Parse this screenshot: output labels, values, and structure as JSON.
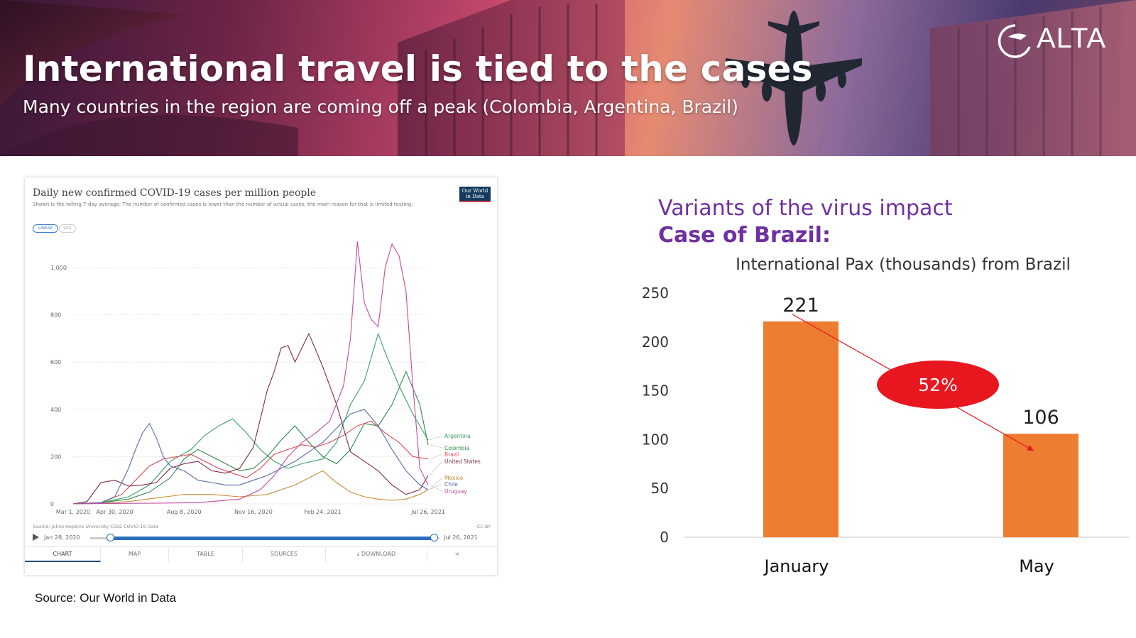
{
  "header": {
    "title": "International travel is tied to the cases",
    "subtitle": "Many countries in the region are coming off a peak (Colombia, Argentina, Brazil)",
    "brand": "ALTA"
  },
  "owid": {
    "title": "Daily new confirmed COVID-19 cases per million people",
    "note": "Shown is the rolling 7-day average. The number of confirmed cases is lower than the number of actual cases; the main reason for that is limited testing.",
    "logo_line1": "Our World",
    "logo_line2": "in Data",
    "scale_linear": "LINEAR",
    "scale_log": "LOG",
    "source": "Source: Johns Hopkins University CSSE COVID-19 Data",
    "license": "CC BY",
    "timeline_start": "Jan 28, 2020",
    "timeline_end": "Jul 26, 2021",
    "tabs": [
      "CHART",
      "MAP",
      "TABLE",
      "SOURCES",
      "DOWNLOAD",
      ""
    ]
  },
  "source_note": "Source: Our World in Data",
  "right_titles": {
    "line1": "Variants of the virus impact",
    "line2": "Case of Brazil:"
  },
  "chart_data": [
    {
      "type": "line",
      "title": "Daily new confirmed COVID-19 cases per million people",
      "x_tick_labels": [
        "Mar 1, 2020",
        "Apr 30, 2020",
        "Aug 8, 2020",
        "Nov 16, 2020",
        "Feb 24, 2021",
        "Jul 26, 2021"
      ],
      "x_tick_days": [
        0,
        60,
        160,
        260,
        360,
        512
      ],
      "x_range_days": [
        0,
        512
      ],
      "y_ticks": [
        0,
        200,
        400,
        600,
        800,
        1000
      ],
      "ylim": [
        0,
        1120
      ],
      "grid": true,
      "legend": "right-end labels",
      "series": [
        {
          "name": "Argentina",
          "color": "#3a9f6e",
          "x": [
            0,
            40,
            80,
            110,
            140,
            170,
            190,
            210,
            230,
            250,
            270,
            290,
            310,
            330,
            360,
            380,
            400,
            420,
            440,
            450,
            470,
            490,
            512
          ],
          "y": [
            0,
            5,
            30,
            80,
            180,
            230,
            290,
            330,
            360,
            300,
            230,
            180,
            150,
            170,
            190,
            260,
            420,
            520,
            720,
            640,
            500,
            380,
            270
          ]
        },
        {
          "name": "Colombia",
          "color": "#2f8a4a",
          "x": [
            0,
            40,
            80,
            110,
            140,
            160,
            180,
            200,
            220,
            240,
            260,
            280,
            300,
            320,
            340,
            360,
            380,
            400,
            420,
            440,
            460,
            480,
            500,
            512
          ],
          "y": [
            0,
            5,
            20,
            50,
            110,
            190,
            230,
            200,
            170,
            140,
            150,
            200,
            270,
            330,
            260,
            200,
            170,
            230,
            340,
            330,
            420,
            560,
            420,
            250
          ]
        },
        {
          "name": "Brazil",
          "color": "#d94a52",
          "x": [
            0,
            40,
            70,
            90,
            110,
            130,
            150,
            170,
            190,
            210,
            230,
            250,
            270,
            290,
            310,
            330,
            350,
            370,
            390,
            410,
            430,
            450,
            470,
            490,
            512
          ],
          "y": [
            0,
            5,
            40,
            100,
            160,
            190,
            200,
            210,
            180,
            150,
            130,
            110,
            150,
            210,
            230,
            250,
            240,
            260,
            290,
            330,
            350,
            300,
            260,
            200,
            190
          ]
        },
        {
          "name": "United States",
          "color": "#7a2a4a",
          "x": [
            0,
            20,
            40,
            60,
            80,
            100,
            120,
            140,
            160,
            180,
            200,
            220,
            240,
            260,
            270,
            280,
            290,
            300,
            310,
            320,
            340,
            360,
            380,
            400,
            420,
            440,
            460,
            480,
            500,
            512
          ],
          "y": [
            0,
            10,
            90,
            100,
            75,
            80,
            90,
            150,
            170,
            180,
            140,
            130,
            150,
            240,
            360,
            480,
            560,
            660,
            670,
            600,
            720,
            580,
            420,
            220,
            180,
            140,
            80,
            40,
            60,
            120
          ]
        },
        {
          "name": "Mexico",
          "color": "#c98a3a",
          "x": [
            0,
            40,
            80,
            120,
            160,
            200,
            240,
            280,
            300,
            320,
            340,
            360,
            380,
            400,
            420,
            440,
            460,
            480,
            500,
            512
          ],
          "y": [
            0,
            2,
            10,
            25,
            40,
            40,
            30,
            40,
            60,
            80,
            110,
            140,
            90,
            50,
            30,
            20,
            15,
            20,
            40,
            60
          ]
        },
        {
          "name": "Chile",
          "color": "#5a6aa8",
          "x": [
            0,
            40,
            60,
            80,
            90,
            100,
            110,
            120,
            130,
            140,
            160,
            180,
            200,
            220,
            240,
            260,
            280,
            300,
            320,
            340,
            360,
            380,
            400,
            420,
            440,
            460,
            480,
            500,
            512
          ],
          "y": [
            0,
            5,
            30,
            150,
            230,
            300,
            340,
            280,
            200,
            160,
            140,
            100,
            90,
            80,
            80,
            100,
            120,
            150,
            180,
            220,
            260,
            320,
            380,
            400,
            330,
            230,
            140,
            80,
            60
          ]
        },
        {
          "name": "Uruguay",
          "color": "#c24aa0",
          "x": [
            0,
            60,
            120,
            180,
            240,
            270,
            290,
            310,
            330,
            350,
            370,
            390,
            400,
            410,
            420,
            430,
            440,
            450,
            460,
            470,
            480,
            490,
            500,
            512
          ],
          "y": [
            0,
            2,
            3,
            5,
            20,
            60,
            120,
            200,
            260,
            300,
            350,
            500,
            700,
            1110,
            850,
            780,
            750,
            1000,
            1100,
            1050,
            900,
            500,
            150,
            80
          ]
        }
      ]
    },
    {
      "type": "bar",
      "title": "International Pax (thousands) from Brazil",
      "categories": [
        "January",
        "May"
      ],
      "values": [
        221,
        106
      ],
      "ylim": [
        0,
        250
      ],
      "y_ticks": [
        0,
        50,
        100,
        150,
        200,
        250
      ],
      "bar_color": "#ed7d31",
      "annotation": {
        "text": "52%",
        "color": "#e8171f"
      }
    }
  ]
}
